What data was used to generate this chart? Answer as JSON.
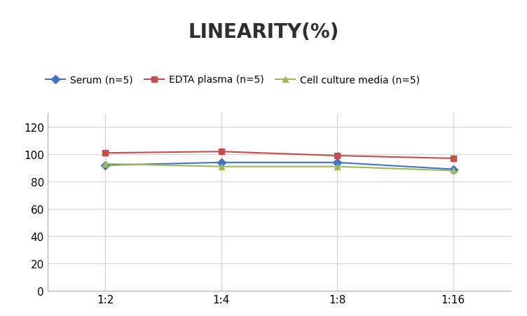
{
  "title": "LINEARITY(%)",
  "x_labels": [
    "1:2",
    "1:4",
    "1:8",
    "1:16"
  ],
  "x_positions": [
    0,
    1,
    2,
    3
  ],
  "series": [
    {
      "label": "Serum (n=5)",
      "values": [
        92,
        94,
        94,
        89
      ],
      "color": "#4472C4",
      "marker": "D",
      "linewidth": 1.5,
      "markersize": 6
    },
    {
      "label": "EDTA plasma (n=5)",
      "values": [
        101,
        102,
        99,
        97
      ],
      "color": "#C0504D",
      "marker": "s",
      "linewidth": 1.5,
      "markersize": 6
    },
    {
      "label": "Cell culture media (n=5)",
      "values": [
        93,
        91,
        91,
        88
      ],
      "color": "#9BBB59",
      "marker": "^",
      "linewidth": 1.5,
      "markersize": 6
    }
  ],
  "ylim": [
    0,
    130
  ],
  "yticks": [
    0,
    20,
    40,
    60,
    80,
    100,
    120
  ],
  "background_color": "#FFFFFF",
  "grid_color": "#D3D3D3",
  "title_fontsize": 20,
  "legend_fontsize": 10,
  "tick_fontsize": 11
}
